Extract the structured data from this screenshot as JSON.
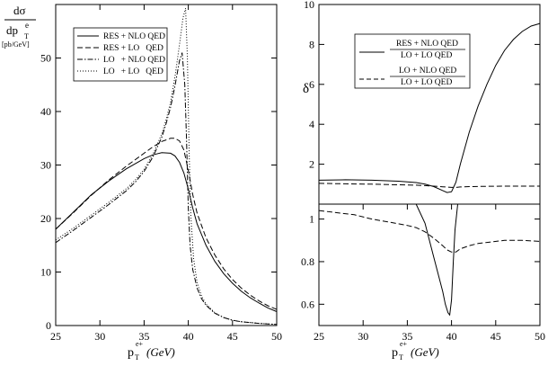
{
  "chart_data": [
    {
      "type": "line",
      "panel": "left",
      "ylabel_top": "dσ",
      "ylabel_bottom": "dp",
      "ylabel_sub": "T",
      "ylabel_sup": "e",
      "ylabel_units": "[pb/GeV]",
      "xlabel_main": "p",
      "xlabel_sub": "T",
      "xlabel_sup": "e+",
      "xlabel_unit": "(GeV)",
      "xlim": [
        25,
        50
      ],
      "ylim": [
        0,
        60
      ],
      "xticks": [
        25,
        30,
        35,
        40,
        45,
        50
      ],
      "yticks": [
        0,
        10,
        20,
        30,
        40,
        50
      ],
      "legend_position": "top-left",
      "series": [
        {
          "name": "RES + NLO QED",
          "dash": "solid",
          "x": [
            25,
            27,
            29,
            31,
            33,
            35,
            36,
            37,
            38,
            38.5,
            39,
            39.5,
            40,
            40.5,
            41,
            42,
            43,
            44,
            45,
            46,
            47,
            48,
            49,
            50
          ],
          "y": [
            18,
            21.2,
            24.4,
            27,
            29.3,
            31.2,
            31.9,
            32.3,
            32.2,
            31.7,
            30.5,
            28.5,
            25.5,
            22,
            19,
            15,
            12,
            9.7,
            7.9,
            6.4,
            5.2,
            4.2,
            3.3,
            2.6
          ]
        },
        {
          "name": "RES + LO   QED",
          "dash": "dashed",
          "x": [
            25,
            27,
            29,
            31,
            33,
            35,
            36,
            37,
            38,
            38.5,
            39,
            39.5,
            40,
            40.5,
            41,
            42,
            43,
            44,
            45,
            46,
            47,
            48,
            49,
            50
          ],
          "y": [
            18,
            21.1,
            24.3,
            27.2,
            29.8,
            32.2,
            33.4,
            34.4,
            35,
            35,
            34.5,
            32.8,
            29,
            24.5,
            21,
            16.4,
            13.2,
            10.6,
            8.6,
            7,
            5.7,
            4.6,
            3.7,
            3
          ]
        },
        {
          "name": "LO   + NLO QED",
          "dash": "dashdot",
          "x": [
            25,
            27,
            29,
            31,
            33,
            34,
            35,
            36,
            37,
            37.5,
            38,
            38.5,
            39,
            39.3,
            39.6,
            39.8,
            40,
            40.2,
            40.5,
            41,
            41.5,
            42,
            43,
            44,
            45,
            46,
            48,
            50
          ],
          "y": [
            15.5,
            17.8,
            20.2,
            22.6,
            25.2,
            26.8,
            28.8,
            31.5,
            35.2,
            37.8,
            40.8,
            44.8,
            49.5,
            51,
            45,
            35,
            22,
            15,
            10.5,
            7,
            5,
            3.8,
            2.3,
            1.5,
            1,
            0.7,
            0.4,
            0.2
          ]
        },
        {
          "name": "LO   + LO   QED",
          "dash": "dotted",
          "x": [
            25,
            27,
            29,
            31,
            33,
            34,
            35,
            36,
            37,
            37.5,
            38,
            38.5,
            39,
            39.4,
            39.7,
            39.9,
            40.1,
            40.3,
            40.6,
            41,
            41.5,
            42,
            43,
            44,
            45,
            46,
            48,
            50
          ],
          "y": [
            16,
            18.2,
            20.6,
            23,
            25.6,
            27.2,
            29.2,
            32,
            35.8,
            38.5,
            41.8,
            46.5,
            52.5,
            57.5,
            59.3,
            50,
            32,
            20,
            12.5,
            8,
            5.5,
            4,
            2.4,
            1.5,
            1,
            0.7,
            0.4,
            0.2
          ]
        }
      ]
    },
    {
      "type": "line",
      "panel": "right-top",
      "ylabel": "δ",
      "xlim": [
        25,
        50
      ],
      "ylim": [
        0,
        10
      ],
      "yticks": [
        2,
        4,
        6,
        8,
        10
      ],
      "legend_position": "top-center",
      "series": [
        {
          "name_num": "RES + NLO QED",
          "name_den": "LO + LO QED",
          "dash": "solid",
          "x": [
            25,
            28,
            31,
            34,
            36,
            37,
            38,
            39,
            39.5,
            40,
            40.5,
            41,
            42,
            43,
            44,
            45,
            46,
            47,
            48,
            49,
            50
          ],
          "y": [
            1.2,
            1.22,
            1.2,
            1.15,
            1.08,
            1.0,
            0.88,
            0.68,
            0.58,
            0.62,
            1.1,
            2.0,
            3.6,
            4.9,
            6.0,
            6.95,
            7.7,
            8.25,
            8.65,
            8.92,
            9.05
          ]
        },
        {
          "name_num": "LO + NLO QED",
          "name_den": "LO + LO QED",
          "dash": "dashed",
          "x": [
            25,
            28,
            31,
            34,
            36,
            37,
            38,
            39,
            40,
            40.5,
            41,
            42,
            44,
            46,
            48,
            50
          ],
          "y": [
            1.04,
            1.02,
            1.0,
            0.97,
            0.95,
            0.93,
            0.9,
            0.87,
            0.84,
            0.84,
            0.86,
            0.88,
            0.89,
            0.9,
            0.9,
            0.9
          ]
        }
      ]
    },
    {
      "type": "line",
      "panel": "right-bottom",
      "xlabel_main": "p",
      "xlabel_sub": "T",
      "xlabel_sup": "e+",
      "xlabel_unit": "(GeV)",
      "xlim": [
        25,
        50
      ],
      "ylim": [
        0.5,
        1.07
      ],
      "xticks": [
        25,
        30,
        35,
        40,
        45,
        50
      ],
      "yticks": [
        0.6,
        0.8,
        1
      ],
      "series": [
        {
          "name": "RES + NLO QED / LO + LO QED",
          "dash": "solid",
          "x": [
            36,
            37,
            38,
            39,
            39.3,
            39.6,
            39.8,
            40,
            40.2,
            40.4,
            40.7
          ],
          "y": [
            1.07,
            0.98,
            0.82,
            0.66,
            0.6,
            0.56,
            0.55,
            0.62,
            0.8,
            0.95,
            1.07
          ]
        },
        {
          "name": "LO + NLO QED / LO + LO QED",
          "dash": "dashed",
          "x": [
            25,
            27,
            29,
            31,
            33,
            35,
            36,
            37,
            38,
            39,
            39.5,
            40,
            40.5,
            41,
            42,
            43,
            44,
            46,
            48,
            50
          ],
          "y": [
            1.04,
            1.03,
            1.02,
            1.0,
            0.985,
            0.97,
            0.96,
            0.94,
            0.91,
            0.875,
            0.855,
            0.845,
            0.845,
            0.86,
            0.875,
            0.885,
            0.89,
            0.9,
            0.9,
            0.895
          ]
        }
      ]
    }
  ]
}
